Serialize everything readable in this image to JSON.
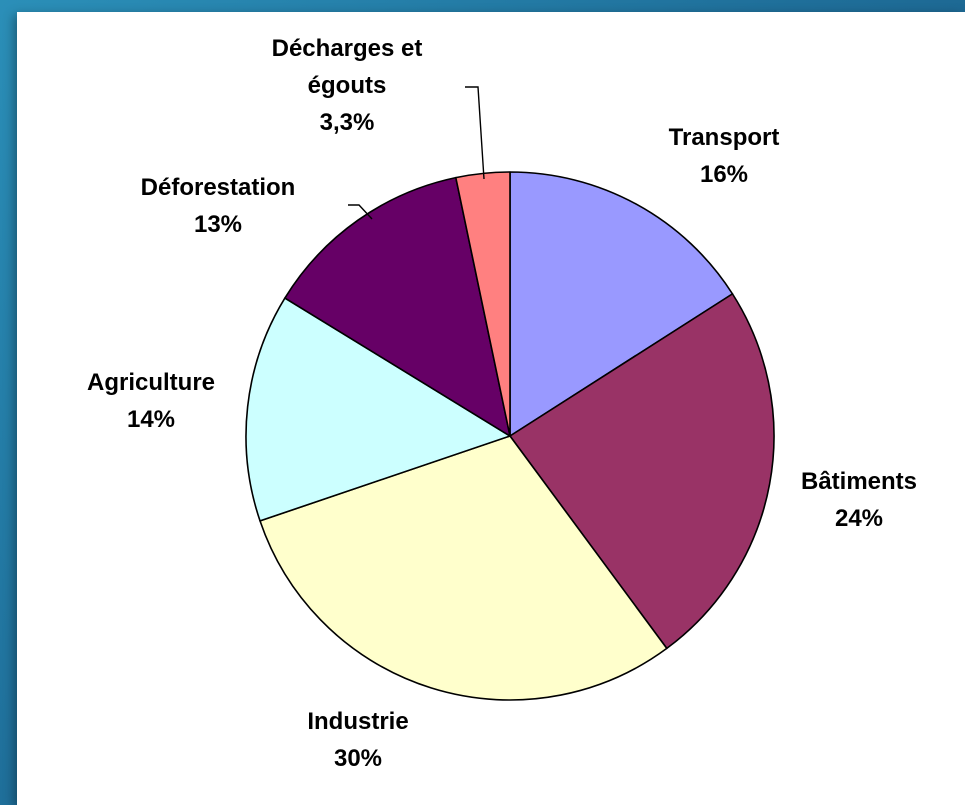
{
  "chart_data": {
    "type": "pie",
    "title": "",
    "start_angle_deg": 0,
    "direction": "clockwise",
    "slices": [
      {
        "label_lines": [
          "Transport"
        ],
        "value_text": "16%",
        "value": 16,
        "color": "#9999ff"
      },
      {
        "label_lines": [
          "Bâtiments"
        ],
        "value_text": "24%",
        "value": 24,
        "color": "#993366"
      },
      {
        "label_lines": [
          "Industrie"
        ],
        "value_text": "30%",
        "value": 30,
        "color": "#ffffcc"
      },
      {
        "label_lines": [
          "Agriculture"
        ],
        "value_text": "14%",
        "value": 14,
        "color": "#ccffff"
      },
      {
        "label_lines": [
          "Déforestation"
        ],
        "value_text": "13%",
        "value": 13,
        "color": "#660066"
      },
      {
        "label_lines": [
          "Décharges et",
          "égouts"
        ],
        "value_text": "3,3%",
        "value": 3.3,
        "color": "#ff8080"
      }
    ]
  }
}
